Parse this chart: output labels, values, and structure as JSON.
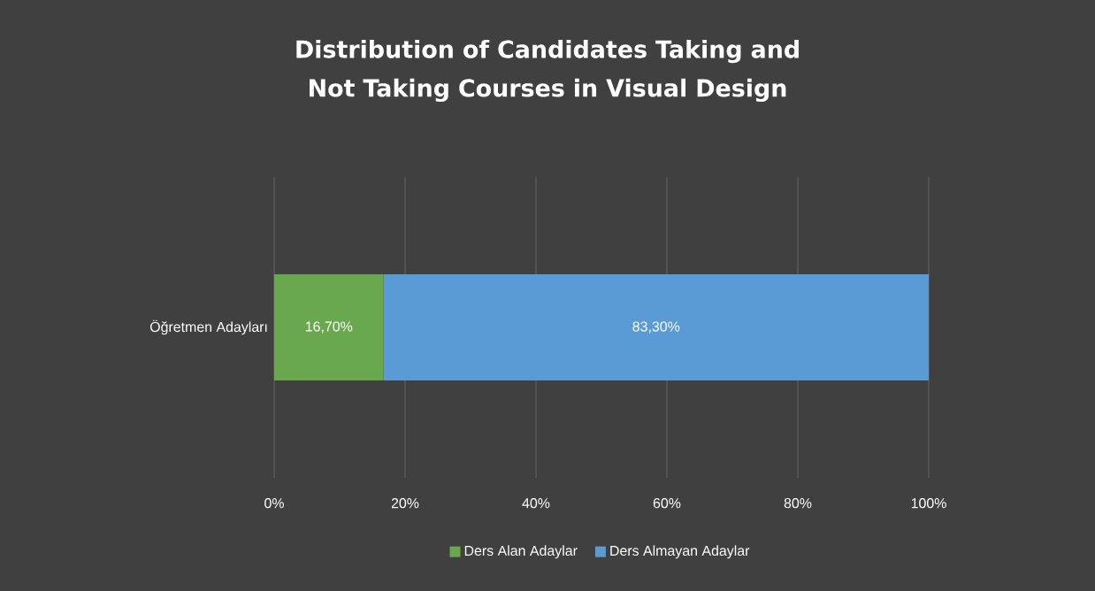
{
  "chart_data": {
    "type": "bar",
    "title": "Distribution of Candidates Taking and Not Taking Courses in Visual Design",
    "categories": [
      "Öğretmen Adayları"
    ],
    "orientation": "horizontal",
    "stacked": true,
    "series": [
      {
        "name": "Ders Alan Adaylar",
        "color": "#6aa84f",
        "values": [
          16.7
        ],
        "value_labels": [
          "16,70%"
        ]
      },
      {
        "name": "Ders Almayan Adaylar",
        "color": "#5b9bd5",
        "values": [
          83.3
        ],
        "value_labels": [
          "83,30%"
        ]
      }
    ],
    "xlim": [
      0,
      100
    ],
    "xticks": [
      {
        "value": 0,
        "label": "0%"
      },
      {
        "value": 20,
        "label": "20%"
      },
      {
        "value": 40,
        "label": "40%"
      },
      {
        "value": 60,
        "label": "60%"
      },
      {
        "value": 80,
        "label": "80%"
      },
      {
        "value": 100,
        "label": "100%"
      }
    ],
    "grid": "x",
    "legend": "bottom"
  }
}
